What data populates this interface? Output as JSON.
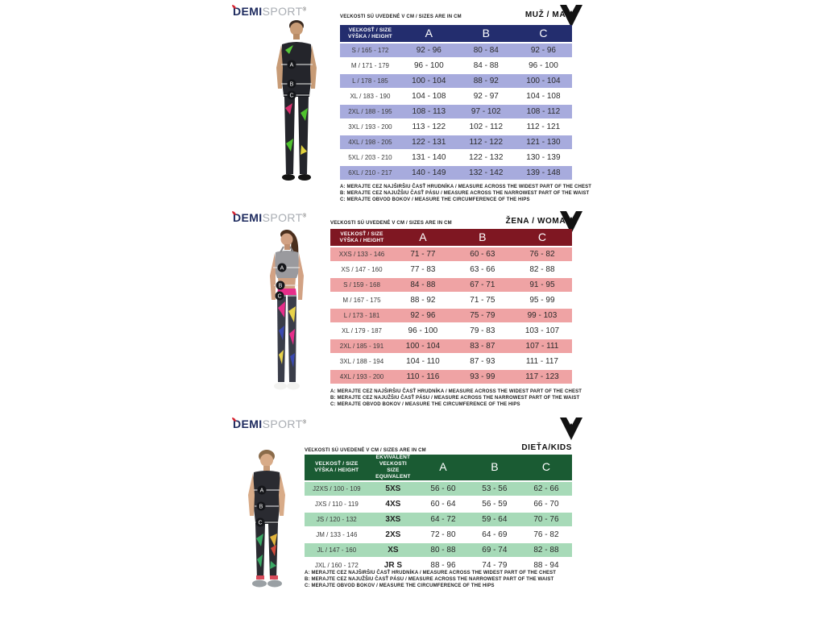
{
  "brand": {
    "part1": "DEMI",
    "part2": "SPORT",
    "reg": "®"
  },
  "units_caption": "VEĽKOSTI SÚ UVEDENÉ V CM / SIZES ARE IN CM",
  "markers": [
    "A",
    "B",
    "C"
  ],
  "footnotes": [
    "A: MERAJTE CEZ NAJŠIRŠIU ČASŤ HRUDNÍKA / MEASURE ACROSS THE WIDEST PART OF THE CHEST",
    "B: MERAJTE CEZ NAJUŽŠIU ČASŤ PÁSU / MEASURE ACROSS THE NARROWEST PART OF THE WAIST",
    "C: MERAJTE OBVOD BOKOV / MEASURE THE CIRCUMFERENCE OF THE HIPS"
  ],
  "sections": [
    {
      "id": "man",
      "label": "MUŽ / MAN",
      "theme": {
        "header": "#232d6e",
        "row": "#a7abdd"
      },
      "table": {
        "col0_header": [
          "VEĽKOSŤ / SIZE",
          "VÝŠKA / HEIGHT"
        ],
        "columns": [
          "A",
          "B",
          "C"
        ],
        "rows": [
          {
            "size": "S / 165 - 172",
            "a": "92 - 96",
            "b": "80 - 84",
            "c": "92 - 96"
          },
          {
            "size": "M / 171 - 179",
            "a": "96 - 100",
            "b": "84 - 88",
            "c": "96 - 100"
          },
          {
            "size": "L / 178 - 185",
            "a": "100 - 104",
            "b": "88 - 92",
            "c": "100 - 104"
          },
          {
            "size": "XL / 183 - 190",
            "a": "104 - 108",
            "b": "92 - 97",
            "c": "104 - 108"
          },
          {
            "size": "2XL / 188 - 195",
            "a": "108 - 113",
            "b": "97 - 102",
            "c": "108 - 112"
          },
          {
            "size": "3XL / 193 - 200",
            "a": "113 - 122",
            "b": "102 - 112",
            "c": "112 - 121"
          },
          {
            "size": "4XL / 198 - 205",
            "a": "122 - 131",
            "b": "112 - 122",
            "c": "121 - 130"
          },
          {
            "size": "5XL / 203 - 210",
            "a": "131 - 140",
            "b": "122 - 132",
            "c": "130 - 139"
          },
          {
            "size": "6XL / 210 - 217",
            "a": "140 - 149",
            "b": "132 - 142",
            "c": "139 - 148"
          }
        ]
      }
    },
    {
      "id": "woman",
      "label": "ŽENA / WOMAN",
      "theme": {
        "header": "#7f1722",
        "row": "#efa3a4"
      },
      "table": {
        "col0_header": [
          "VEĽKOSŤ / SIZE",
          "VÝŠKA / HEIGHT"
        ],
        "columns": [
          "A",
          "B",
          "C"
        ],
        "rows": [
          {
            "size": "XXS / 133 - 146",
            "a": "71 - 77",
            "b": "60 - 63",
            "c": "76 - 82"
          },
          {
            "size": "XS / 147 - 160",
            "a": "77 - 83",
            "b": "63 - 66",
            "c": "82 - 88"
          },
          {
            "size": "S / 159 - 168",
            "a": "84 - 88",
            "b": "67 - 71",
            "c": "91 - 95"
          },
          {
            "size": "M / 167 - 175",
            "a": "88 - 92",
            "b": "71 - 75",
            "c": "95 - 99"
          },
          {
            "size": "L / 173 - 181",
            "a": "92 - 96",
            "b": "75 - 79",
            "c": "99 - 103"
          },
          {
            "size": "XL / 179 - 187",
            "a": "96 - 100",
            "b": "79 - 83",
            "c": "103 - 107"
          },
          {
            "size": "2XL / 185 - 191",
            "a": "100 - 104",
            "b": "83 - 87",
            "c": "107 - 111"
          },
          {
            "size": "3XL / 188 - 194",
            "a": "104 - 110",
            "b": "87 - 93",
            "c": "111 - 117"
          },
          {
            "size": "4XL / 193 - 200",
            "a": "110 - 116",
            "b": "93 - 99",
            "c": "117 - 123"
          }
        ]
      }
    },
    {
      "id": "kids",
      "label": "DIEŤA/KIDS",
      "theme": {
        "header": "#1a5b33",
        "row": "#a7dab8"
      },
      "table": {
        "col0_header": [
          "VEĽKOSŤ / SIZE",
          "VÝŠKA / HEIGHT"
        ],
        "col1_header": [
          "EKVIVALENT VEĽKOSTI",
          "SIZE EQUIVALENT"
        ],
        "columns": [
          "A",
          "B",
          "C"
        ],
        "rows": [
          {
            "size": "J2XS / 100 - 109",
            "eq": "5XS",
            "a": "56 - 60",
            "b": "53 - 56",
            "c": "62 - 66"
          },
          {
            "size": "JXS / 110 - 119",
            "eq": "4XS",
            "a": "60 - 64",
            "b": "56 - 59",
            "c": "66 - 70"
          },
          {
            "size": "JS / 120 - 132",
            "eq": "3XS",
            "a": "64 - 72",
            "b": "59 - 64",
            "c": "70 - 76"
          },
          {
            "size": "JM / 133 - 146",
            "eq": "2XS",
            "a": "72 - 80",
            "b": "64 - 69",
            "c": "76 - 82"
          },
          {
            "size": "JL / 147 - 160",
            "eq": "XS",
            "a": "80 - 88",
            "b": "69 - 74",
            "c": "82 - 88"
          },
          {
            "size": "JXL / 160 - 172",
            "eq": "JR S",
            "a": "88 - 96",
            "b": "74 - 79",
            "c": "88 - 94"
          }
        ]
      }
    }
  ]
}
